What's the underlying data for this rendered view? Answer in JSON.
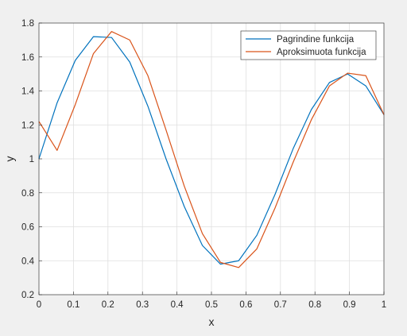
{
  "chart_data": {
    "type": "line",
    "xlabel": "x",
    "ylabel": "y",
    "xlim": [
      0,
      1
    ],
    "ylim": [
      0.2,
      1.8
    ],
    "grid": true,
    "legend_position": "top-right",
    "x_ticks": [
      0,
      0.1,
      0.2,
      0.3,
      0.4,
      0.5,
      0.6,
      0.7,
      0.8,
      0.9,
      1
    ],
    "x_tick_labels": [
      "0",
      "0.1",
      "0.2",
      "0.3",
      "0.4",
      "0.5",
      "0.6",
      "0.7",
      "0.8",
      "0.9",
      "1"
    ],
    "y_ticks": [
      0.2,
      0.4,
      0.6,
      0.8,
      1,
      1.2,
      1.4,
      1.6,
      1.8
    ],
    "y_tick_labels": [
      "0.2",
      "0.4",
      "0.6",
      "0.8",
      "1",
      "1.2",
      "1.4",
      "1.6",
      "1.8"
    ],
    "series": [
      {
        "name": "Pagrindine funkcija",
        "color": "#0072bd",
        "x": [
          0,
          0.0526,
          0.1053,
          0.1579,
          0.2105,
          0.2632,
          0.3158,
          0.3684,
          0.4211,
          0.4737,
          0.5263,
          0.5789,
          0.6316,
          0.6842,
          0.7368,
          0.7895,
          0.8421,
          0.8947,
          0.9474,
          1
        ],
        "y": [
          1.0,
          1.33,
          1.58,
          1.72,
          1.715,
          1.57,
          1.31,
          1.0,
          0.72,
          0.49,
          0.38,
          0.4,
          0.55,
          0.79,
          1.06,
          1.29,
          1.45,
          1.5,
          1.43,
          1.26
        ]
      },
      {
        "name": "Aproksimuota funkcija",
        "color": "#d95319",
        "x": [
          0,
          0.0526,
          0.1053,
          0.1579,
          0.2105,
          0.2632,
          0.3158,
          0.3684,
          0.4211,
          0.4737,
          0.5263,
          0.5789,
          0.6316,
          0.6842,
          0.7368,
          0.7895,
          0.8421,
          0.8947,
          0.9474,
          1
        ],
        "y": [
          1.22,
          1.05,
          1.32,
          1.62,
          1.75,
          1.7,
          1.49,
          1.17,
          0.84,
          0.56,
          0.39,
          0.36,
          0.47,
          0.71,
          0.98,
          1.23,
          1.43,
          1.505,
          1.49,
          1.26
        ]
      }
    ]
  }
}
